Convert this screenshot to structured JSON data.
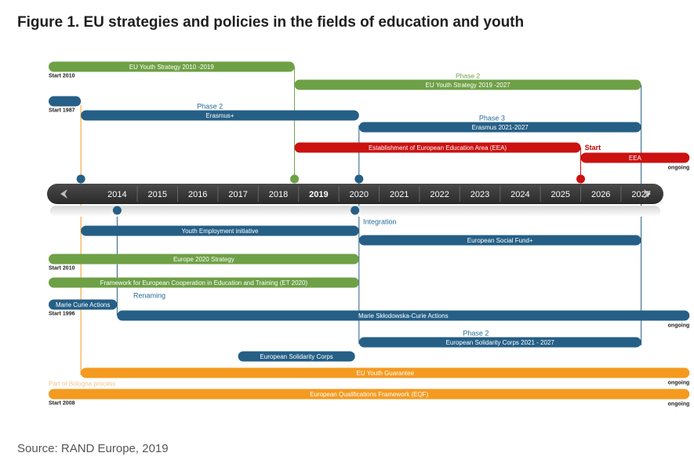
{
  "header": {
    "title": "Figure 1. EU strategies and policies in the fields of education and youth"
  },
  "footer": {
    "source": "Source: RAND Europe, 2019"
  },
  "timeline": {
    "years": [
      "2014",
      "2015",
      "2016",
      "2017",
      "2018",
      "2019",
      "2020",
      "2021",
      "2022",
      "2023",
      "2024",
      "2025",
      "2026",
      "2027"
    ],
    "highlight_year": "2019",
    "left_arrow_icon": "chevron-left-icon",
    "right_arrow_icon": "chevron-right-icon"
  },
  "colors": {
    "green": "#6ea046",
    "blue": "#255f86",
    "red": "#cc1111",
    "orange": "#f49a1f",
    "axis": "#3b3b3b",
    "phase_blue": "#2a6b96",
    "phase_red": "#c00000"
  },
  "bars": [
    {
      "label": "EU Youth Strategy 2010 -2019",
      "color": "green",
      "start": 2012.8,
      "end": 2018.9,
      "row": 0
    },
    {
      "label": "EU Youth Strategy 2019 -2027",
      "color": "green",
      "start": 2018.9,
      "end": 2027.5,
      "row": 1
    },
    {
      "label": "",
      "color": "blue",
      "start": 2012.8,
      "end": 2013.6,
      "row": 2
    },
    {
      "label": "Erasmus+",
      "color": "blue",
      "start": 2013.6,
      "end": 2020.5,
      "row": 3
    },
    {
      "label": "Erasmus 2021-2027",
      "color": "blue",
      "start": 2020.5,
      "end": 2027.5,
      "row": 4
    },
    {
      "label": "Establishment of European Education Area (EEA)",
      "color": "red",
      "start": 2018.9,
      "end": 2026.0,
      "row": 5
    },
    {
      "label": "EEA",
      "color": "red",
      "start": 2026.0,
      "end": 2028.7,
      "row": 6
    },
    {
      "label": "Youth Employment initiative",
      "color": "blue",
      "start": 2013.6,
      "end": 2020.5,
      "row": 7
    },
    {
      "label": "European Social Fund+",
      "color": "blue",
      "start": 2020.5,
      "end": 2027.5,
      "row": 8
    },
    {
      "label": "Europe 2020 Strategy",
      "color": "green",
      "start": 2012.8,
      "end": 2020.5,
      "row": 9
    },
    {
      "label": "Framework for European Cooperation in Education and Training (ET 2020)",
      "color": "green",
      "start": 2012.8,
      "end": 2020.5,
      "row": 10
    },
    {
      "label": "Marie Curie Actions",
      "color": "blue",
      "start": 2012.8,
      "end": 2014.5,
      "row": 11
    },
    {
      "label": "Marie Skłodowska-Curie Actions",
      "color": "blue",
      "start": 2014.5,
      "end": 2028.7,
      "row": 12
    },
    {
      "label": "European Solidarity Corps 2021 - 2027",
      "color": "blue",
      "start": 2020.5,
      "end": 2027.5,
      "row": 13
    },
    {
      "label": "European Solidarity Corps",
      "color": "blue",
      "start": 2017.5,
      "end": 2020.4,
      "row": 14
    },
    {
      "label": "EU Youth Guarantee",
      "color": "orange",
      "start": 2013.6,
      "end": 2028.7,
      "row": 15
    },
    {
      "label": "European Qualifications Framework (EQF)",
      "color": "orange",
      "start": 2012.8,
      "end": 2028.7,
      "row": 16
    }
  ],
  "annotations": [
    {
      "text": "Start 2010",
      "type": "start",
      "x": 2012.8,
      "row": 0
    },
    {
      "text": "Phase 2",
      "type": "phase_green",
      "x": 2023.2,
      "row": 1
    },
    {
      "text": "Start 1987",
      "type": "start",
      "x": 2012.8,
      "row": 2
    },
    {
      "text": "Phase 2",
      "type": "phase_blue",
      "x": 2016.8,
      "row": 3
    },
    {
      "text": "Phase 3",
      "type": "phase_blue",
      "x": 2023.8,
      "row": 4
    },
    {
      "text": "Start",
      "type": "phase_red",
      "x": 2026.1,
      "row": 5
    },
    {
      "text": "ongoing",
      "type": "ongoing",
      "x": 2028.7,
      "row": 6
    },
    {
      "text": "Integration",
      "type": "phase_blue",
      "x": 2020.6,
      "row": 7
    },
    {
      "text": "Start 2010",
      "type": "start",
      "x": 2012.8,
      "row": 9
    },
    {
      "text": "Start 1996",
      "type": "start",
      "x": 2012.8,
      "row": 11
    },
    {
      "text": "Renaming",
      "type": "phase_blue",
      "x": 2014.9,
      "row": 11
    },
    {
      "text": "ongoing",
      "type": "ongoing",
      "x": 2028.7,
      "row": 12
    },
    {
      "text": "Phase 2",
      "type": "phase_blue",
      "x": 2023.4,
      "row": 13
    },
    {
      "text": "ongoing",
      "type": "ongoing",
      "x": 2028.7,
      "row": 15
    },
    {
      "text": "Part of Bologna process",
      "type": "faded",
      "x": 2012.8,
      "row": 15
    },
    {
      "text": "Start 2008",
      "type": "start",
      "x": 2012.8,
      "row": 16
    },
    {
      "text": "ongoing",
      "type": "ongoing",
      "x": 2028.7,
      "row": 16
    }
  ],
  "markers": [
    {
      "x": 2013.6,
      "color": "blue",
      "side": "above"
    },
    {
      "x": 2018.9,
      "color": "green",
      "side": "above"
    },
    {
      "x": 2020.5,
      "color": "blue",
      "side": "above"
    },
    {
      "x": 2026.0,
      "color": "red",
      "side": "above"
    },
    {
      "x": 2014.5,
      "color": "blue",
      "side": "below"
    },
    {
      "x": 2020.4,
      "color": "blue",
      "side": "below"
    }
  ]
}
